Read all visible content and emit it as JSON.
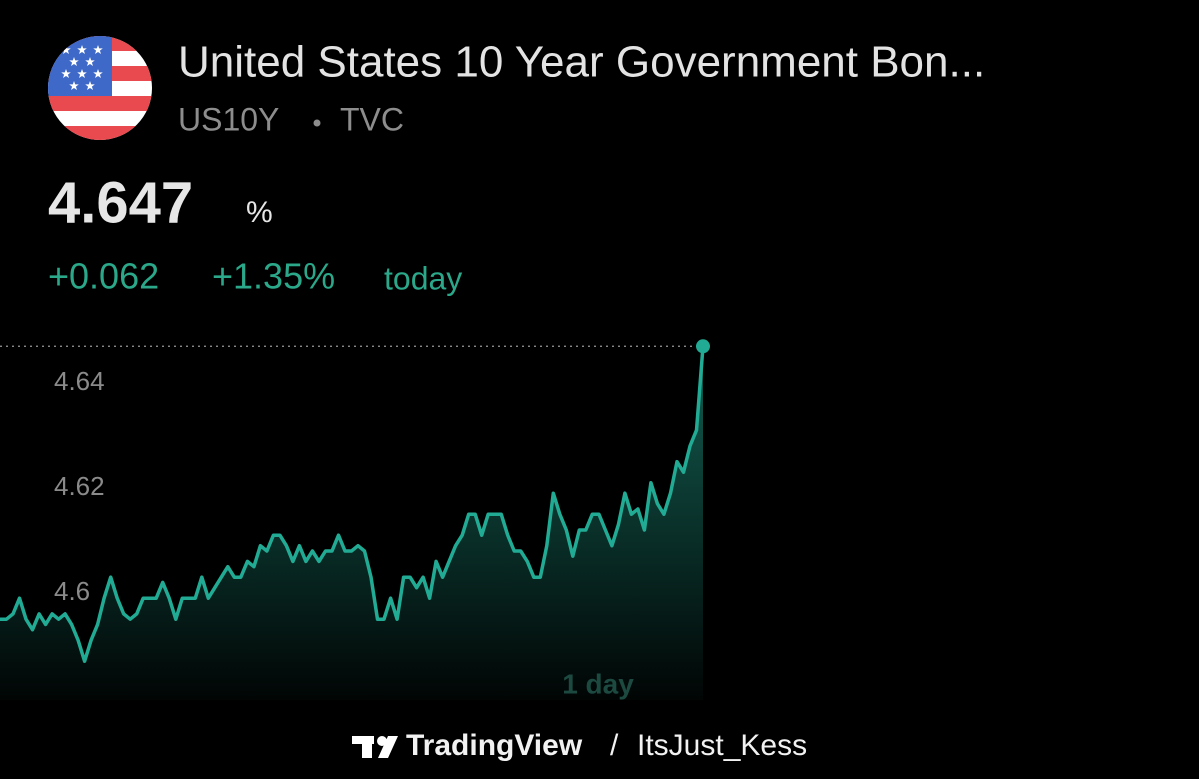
{
  "header": {
    "title": "United States 10 Year Government Bon...",
    "symbol": "US10Y",
    "exchange": "TVC"
  },
  "quote": {
    "price": "4.647",
    "unit": "%",
    "change": "+0.062",
    "change_percent": "+1.35%",
    "period": "today"
  },
  "chart_data": {
    "type": "area",
    "series": [
      {
        "color": "#22ab94",
        "values": [
          4.595,
          4.595,
          4.596,
          4.599,
          4.595,
          4.593,
          4.596,
          4.594,
          4.596,
          4.595,
          4.596,
          4.594,
          4.591,
          4.587,
          4.591,
          4.594,
          4.599,
          4.603,
          4.599,
          4.596,
          4.595,
          4.596,
          4.599,
          4.599,
          4.599,
          4.602,
          4.599,
          4.595,
          4.599,
          4.599,
          4.599,
          4.603,
          4.599,
          4.601,
          4.603,
          4.605,
          4.603,
          4.603,
          4.606,
          4.605,
          4.609,
          4.608,
          4.611,
          4.611,
          4.609,
          4.606,
          4.609,
          4.606,
          4.608,
          4.606,
          4.608,
          4.608,
          4.611,
          4.608,
          4.608,
          4.609,
          4.608,
          4.603,
          4.595,
          4.595,
          4.599,
          4.595,
          4.603,
          4.603,
          4.601,
          4.603,
          4.599,
          4.606,
          4.603,
          4.606,
          4.609,
          4.611,
          4.615,
          4.615,
          4.611,
          4.615,
          4.615,
          4.615,
          4.611,
          4.608,
          4.608,
          4.606,
          4.603,
          4.603,
          4.609,
          4.619,
          4.615,
          4.612,
          4.607,
          4.612,
          4.612,
          4.615,
          4.615,
          4.612,
          4.609,
          4.613,
          4.619,
          4.615,
          4.616,
          4.612,
          4.621,
          4.617,
          4.615,
          4.619,
          4.625,
          4.623,
          4.628,
          4.631,
          4.647
        ]
      }
    ],
    "ylim": [
      4.5796,
      4.6501
    ],
    "yticks": [
      4.6,
      4.62,
      4.64
    ],
    "range_label": "1 day"
  },
  "footer": {
    "brand": "TradingView",
    "separator": "/",
    "author": "ItsJust_Kess"
  }
}
